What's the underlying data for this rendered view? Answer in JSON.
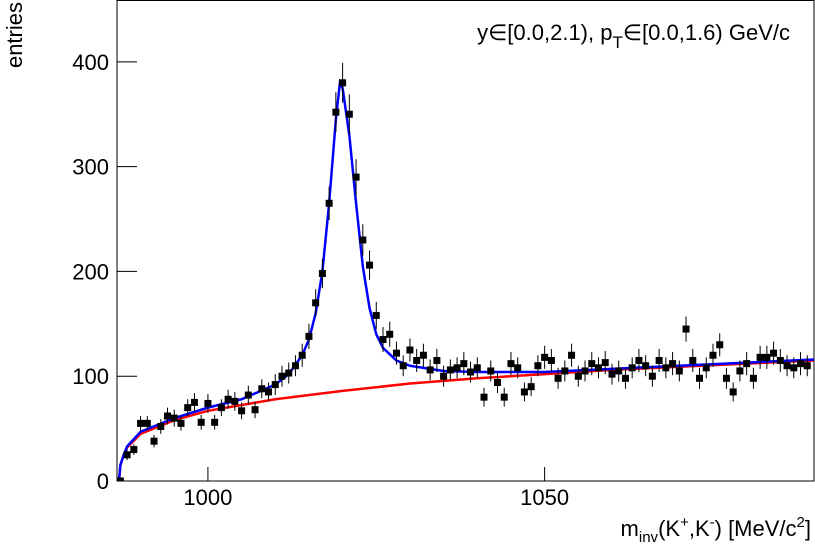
{
  "chart_data": {
    "type": "errorbar",
    "annotation": [
      "y∈[0.0,2.1),  p",
      "T",
      "∈[0.0,1.6) GeV/c"
    ],
    "x_label": [
      "m",
      "inv",
      "(K",
      "+",
      ",K",
      "-",
      ") [MeV/c",
      "2",
      "]"
    ],
    "y_label": "entries",
    "xlim": [
      986.5,
      1090
    ],
    "ylim": [
      0,
      459
    ],
    "xticks": [
      1000,
      1050
    ],
    "yticks": [
      0,
      100,
      200,
      300,
      400
    ],
    "color": "#000000",
    "x": [
      987,
      988,
      989,
      990,
      991,
      992,
      993,
      994,
      995,
      996,
      997,
      998,
      999,
      1000,
      1001,
      1002,
      1003,
      1004,
      1005,
      1006,
      1007,
      1008,
      1009,
      1010,
      1011,
      1012,
      1013,
      1014,
      1015,
      1016,
      1017,
      1018,
      1019,
      1020,
      1021,
      1022,
      1023,
      1024,
      1025,
      1026,
      1027,
      1028,
      1029,
      1030,
      1031,
      1032,
      1033,
      1034,
      1035,
      1036,
      1037,
      1038,
      1039,
      1040,
      1041,
      1042,
      1043,
      1044,
      1045,
      1046,
      1047,
      1048,
      1049,
      1050,
      1051,
      1052,
      1053,
      1054,
      1055,
      1056,
      1057,
      1058,
      1059,
      1060,
      1061,
      1062,
      1063,
      1064,
      1065,
      1066,
      1067,
      1068,
      1069,
      1070,
      1071,
      1072,
      1073,
      1074,
      1075,
      1076,
      1077,
      1078,
      1079,
      1080,
      1081,
      1082,
      1083,
      1084,
      1085,
      1086,
      1087,
      1088,
      1089
    ],
    "values": [
      0,
      25,
      30,
      55,
      55,
      38,
      52,
      62,
      60,
      55,
      70,
      75,
      56,
      74,
      56,
      70,
      78,
      76,
      67,
      82,
      68,
      88,
      85,
      92,
      100,
      103,
      110,
      120,
      138,
      170,
      198,
      265,
      352,
      380,
      350,
      290,
      230,
      206,
      158,
      135,
      140,
      122,
      110,
      125,
      115,
      120,
      106,
      115,
      100,
      106,
      108,
      112,
      104,
      108,
      80,
      105,
      94,
      80,
      112,
      108,
      85,
      90,
      110,
      118,
      115,
      98,
      105,
      120,
      100,
      105,
      112,
      108,
      113,
      102,
      105,
      98,
      108,
      115,
      110,
      100,
      115,
      108,
      112,
      105,
      145,
      115,
      98,
      108,
      120,
      130,
      98,
      85,
      105,
      112,
      98,
      118,
      118,
      122,
      115,
      110,
      108,
      112,
      110
    ],
    "errors": [
      0,
      5,
      5,
      7,
      7,
      6,
      7,
      8,
      8,
      7,
      8,
      9,
      7,
      9,
      7,
      8,
      9,
      9,
      8,
      9,
      8,
      9,
      9,
      10,
      10,
      10,
      10,
      11,
      12,
      13,
      14,
      16,
      19,
      19,
      19,
      17,
      15,
      14,
      13,
      12,
      12,
      11,
      10,
      11,
      11,
      11,
      10,
      11,
      10,
      10,
      10,
      11,
      10,
      10,
      9,
      10,
      10,
      9,
      11,
      10,
      9,
      9,
      10,
      11,
      11,
      10,
      10,
      11,
      10,
      10,
      11,
      10,
      11,
      10,
      10,
      10,
      10,
      11,
      10,
      10,
      11,
      10,
      11,
      10,
      12,
      11,
      10,
      10,
      11,
      11,
      10,
      9,
      10,
      11,
      10,
      11,
      11,
      11,
      11,
      10,
      10,
      11,
      10
    ],
    "fits": [
      {
        "color": "#ff0000",
        "x": [
          986.8,
          987,
          987.5,
          988,
          990,
          995,
          1000,
          1010,
          1020,
          1030,
          1040,
          1050,
          1060,
          1070,
          1080,
          1090
        ],
        "values": [
          0,
          15,
          25,
          32,
          45,
          58,
          67,
          78,
          86,
          93,
          98,
          102,
          106,
          109,
          112,
          115
        ]
      },
      {
        "color": "#0000ff",
        "x": [
          986.8,
          987,
          987.5,
          988,
          990,
          995,
          1000,
          1005,
          1010,
          1012,
          1014,
          1015,
          1016,
          1017,
          1018,
          1019,
          1019.6,
          1020,
          1021,
          1022,
          1023,
          1024,
          1025,
          1026,
          1028,
          1030,
          1035,
          1040,
          1050,
          1060,
          1070,
          1080,
          1090
        ],
        "values": [
          0,
          15,
          25,
          33,
          47,
          60,
          70,
          78,
          92,
          102,
          120,
          135,
          160,
          200,
          265,
          345,
          380,
          375,
          330,
          265,
          205,
          165,
          140,
          127,
          115,
          110,
          105,
          104,
          104,
          107,
          110,
          113,
          116
        ]
      }
    ]
  }
}
